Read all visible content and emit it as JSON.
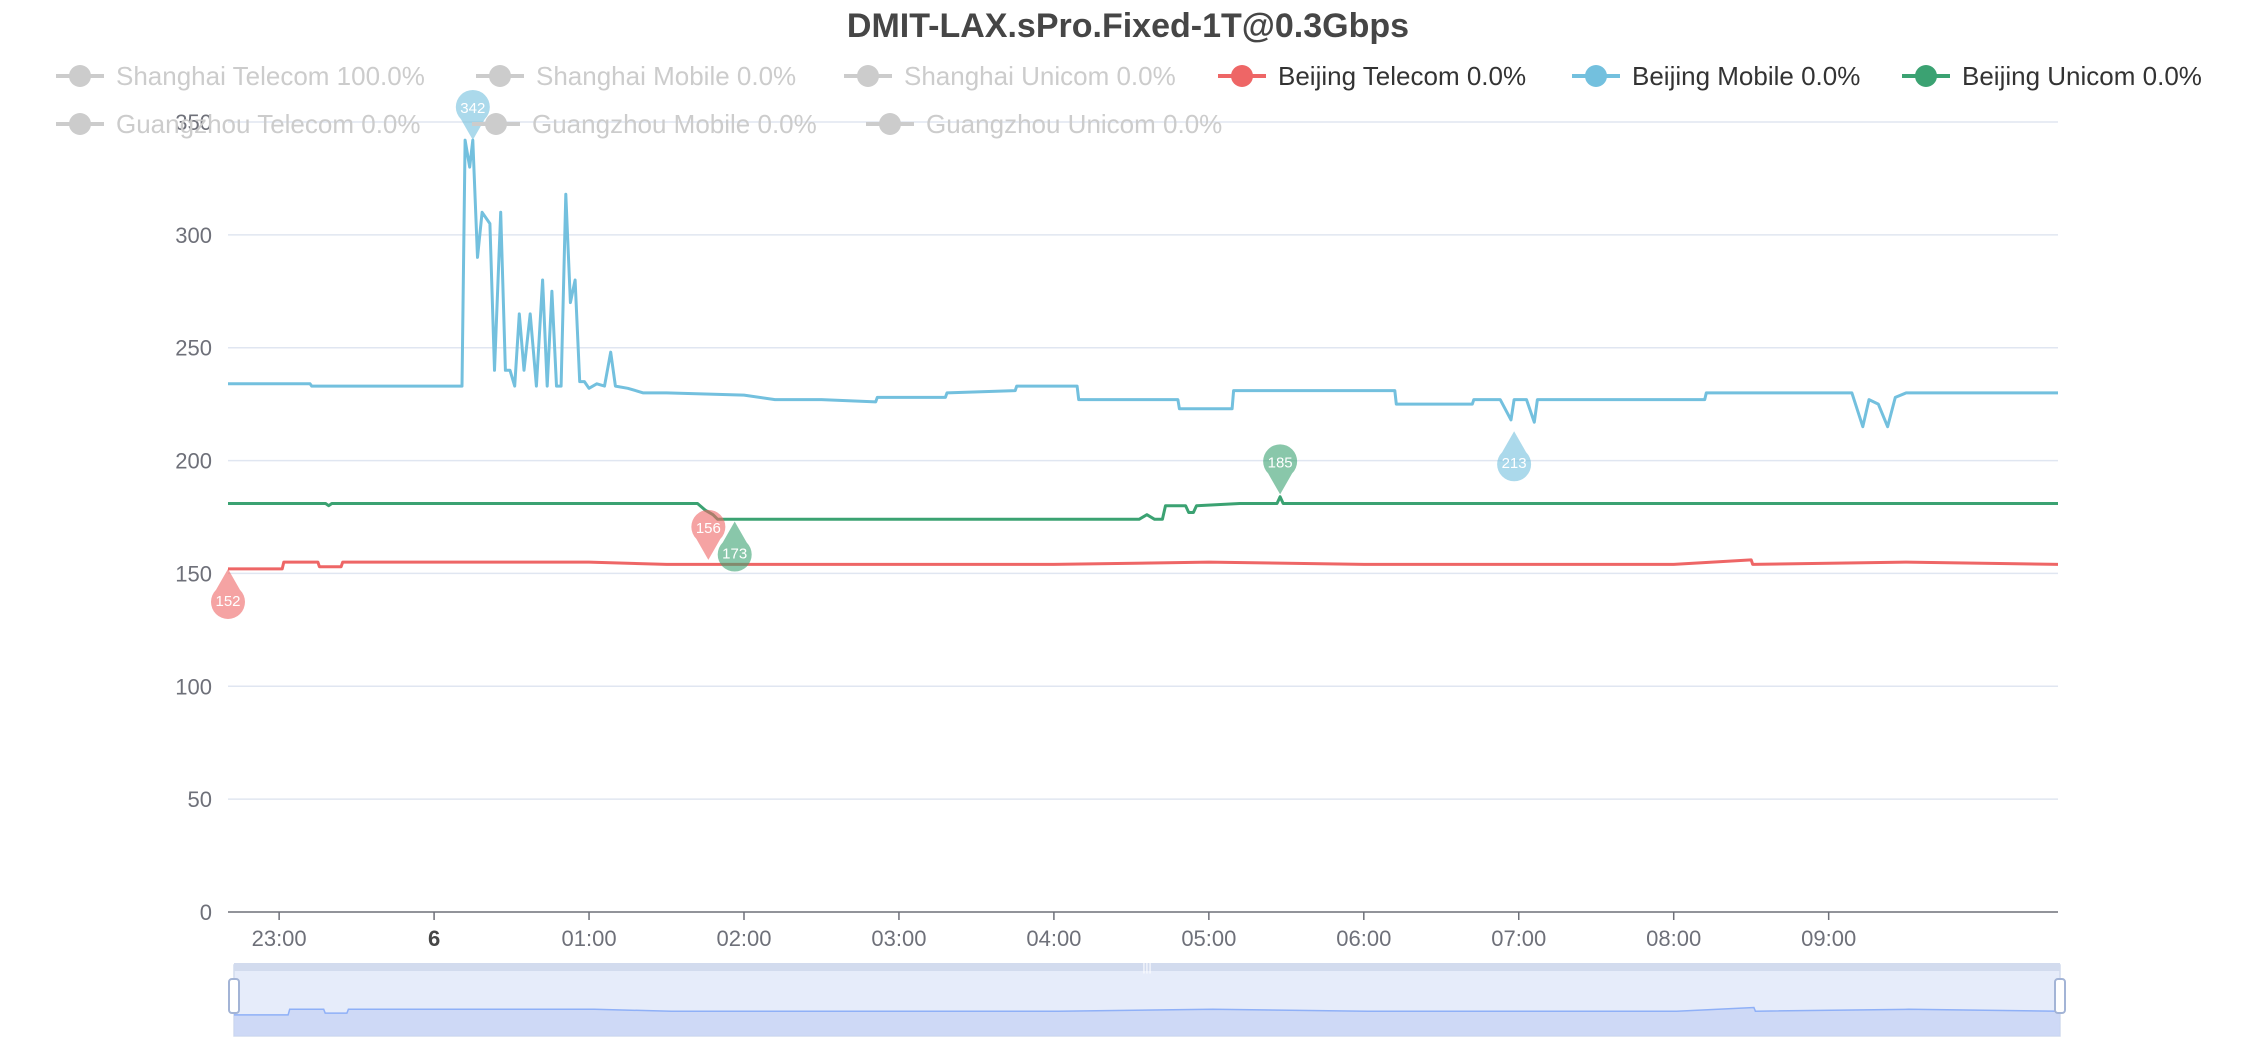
{
  "colors": {
    "beijing_telecom": "#ee6666",
    "beijing_mobile": "#73c0de",
    "beijing_unicom": "#3ba272",
    "inactive": "#cccccc",
    "grid": "#e0e6f1",
    "axis": "#6e7079",
    "slider_fill": "#e6ecfa",
    "slider_line": "#8fb0f7"
  },
  "chart_data": {
    "type": "line",
    "title": "DMIT-LAX.sPro.Fixed-1T@0.3Gbps",
    "ylim": [
      0,
      350
    ],
    "yticks": [
      "0",
      "50",
      "100",
      "150",
      "200",
      "250",
      "300",
      "350"
    ],
    "xrange_hours": [
      -1.33,
      10.48
    ],
    "xticks": [
      {
        "label": "23:00",
        "t": -1
      },
      {
        "label": "6",
        "t": 0,
        "bold": true
      },
      {
        "label": "01:00",
        "t": 1
      },
      {
        "label": "02:00",
        "t": 2
      },
      {
        "label": "03:00",
        "t": 3
      },
      {
        "label": "04:00",
        "t": 4
      },
      {
        "label": "05:00",
        "t": 5
      },
      {
        "label": "06:00",
        "t": 6
      },
      {
        "label": "07:00",
        "t": 7
      },
      {
        "label": "08:00",
        "t": 8
      },
      {
        "label": "09:00",
        "t": 9
      }
    ],
    "legend": [
      {
        "label": "Shanghai Telecom 100.0%",
        "active": false
      },
      {
        "label": "Shanghai Mobile 0.0%",
        "active": false
      },
      {
        "label": "Shanghai Unicom 0.0%",
        "active": false
      },
      {
        "label": "Beijing Telecom 0.0%",
        "active": true,
        "color_key": "beijing_telecom"
      },
      {
        "label": "Beijing Mobile 0.0%",
        "active": true,
        "color_key": "beijing_mobile"
      },
      {
        "label": "Beijing Unicom 0.0%",
        "active": true,
        "color_key": "beijing_unicom"
      },
      {
        "label": "Guangzhou Telecom 0.0%",
        "active": false
      },
      {
        "label": "Guangzhou Mobile 0.0%",
        "active": false
      },
      {
        "label": "Guangzhou Unicom 0.0%",
        "active": false
      }
    ],
    "series": [
      {
        "name": "Beijing Telecom",
        "color_key": "beijing_telecom",
        "points": [
          [
            -1.33,
            152
          ],
          [
            -0.98,
            152
          ],
          [
            -0.97,
            155
          ],
          [
            -0.75,
            155
          ],
          [
            -0.74,
            153
          ],
          [
            -0.6,
            153
          ],
          [
            -0.59,
            155
          ],
          [
            1.0,
            155
          ],
          [
            1.5,
            154
          ],
          [
            2.0,
            154
          ],
          [
            4.0,
            154
          ],
          [
            5.0,
            155
          ],
          [
            6.0,
            154
          ],
          [
            8.0,
            154
          ],
          [
            8.5,
            156
          ],
          [
            8.51,
            154
          ],
          [
            9.5,
            155
          ],
          [
            10.48,
            154
          ]
        ],
        "markers": [
          {
            "label": "152",
            "t": -1.33,
            "v": 152,
            "pos": "below"
          },
          {
            "label": "156",
            "t": 1.77,
            "v": 156,
            "pos": "above"
          }
        ]
      },
      {
        "name": "Beijing Mobile",
        "color_key": "beijing_mobile",
        "points": [
          [
            -1.33,
            234
          ],
          [
            -0.8,
            234
          ],
          [
            -0.79,
            233
          ],
          [
            0.18,
            233
          ],
          [
            0.2,
            342
          ],
          [
            0.23,
            330
          ],
          [
            0.25,
            342
          ],
          [
            0.28,
            290
          ],
          [
            0.31,
            310
          ],
          [
            0.36,
            305
          ],
          [
            0.39,
            240
          ],
          [
            0.43,
            310
          ],
          [
            0.46,
            240
          ],
          [
            0.49,
            240
          ],
          [
            0.52,
            233
          ],
          [
            0.55,
            265
          ],
          [
            0.58,
            240
          ],
          [
            0.62,
            265
          ],
          [
            0.66,
            233
          ],
          [
            0.7,
            280
          ],
          [
            0.73,
            233
          ],
          [
            0.76,
            275
          ],
          [
            0.79,
            233
          ],
          [
            0.82,
            233
          ],
          [
            0.85,
            318
          ],
          [
            0.88,
            270
          ],
          [
            0.91,
            280
          ],
          [
            0.94,
            235
          ],
          [
            0.97,
            235
          ],
          [
            1.0,
            232
          ],
          [
            1.05,
            234
          ],
          [
            1.1,
            233
          ],
          [
            1.14,
            248
          ],
          [
            1.17,
            233
          ],
          [
            1.25,
            232
          ],
          [
            1.35,
            230
          ],
          [
            1.5,
            230
          ],
          [
            2.0,
            229
          ],
          [
            2.2,
            227
          ],
          [
            2.5,
            227
          ],
          [
            2.85,
            226
          ],
          [
            2.86,
            228
          ],
          [
            3.3,
            228
          ],
          [
            3.31,
            230
          ],
          [
            3.75,
            231
          ],
          [
            3.76,
            233
          ],
          [
            4.15,
            233
          ],
          [
            4.16,
            227
          ],
          [
            4.8,
            227
          ],
          [
            4.81,
            223
          ],
          [
            5.15,
            223
          ],
          [
            5.16,
            231
          ],
          [
            6.2,
            231
          ],
          [
            6.21,
            225
          ],
          [
            6.7,
            225
          ],
          [
            6.71,
            227
          ],
          [
            6.88,
            227
          ],
          [
            6.95,
            218
          ],
          [
            6.97,
            227
          ],
          [
            7.05,
            227
          ],
          [
            7.1,
            217
          ],
          [
            7.12,
            227
          ],
          [
            8.2,
            227
          ],
          [
            8.21,
            230
          ],
          [
            9.15,
            230
          ],
          [
            9.22,
            215
          ],
          [
            9.26,
            227
          ],
          [
            9.32,
            225
          ],
          [
            9.38,
            215
          ],
          [
            9.43,
            228
          ],
          [
            9.5,
            230
          ],
          [
            10.48,
            230
          ]
        ],
        "markers": [
          {
            "label": "342",
            "t": 0.25,
            "v": 342,
            "pos": "above"
          },
          {
            "label": "213",
            "t": 6.97,
            "v": 213,
            "pos": "below"
          }
        ]
      },
      {
        "name": "Beijing Unicom",
        "color_key": "beijing_unicom",
        "points": [
          [
            -1.33,
            181
          ],
          [
            -0.7,
            181
          ],
          [
            -0.68,
            180
          ],
          [
            -0.66,
            181
          ],
          [
            1.7,
            181
          ],
          [
            1.75,
            178
          ],
          [
            1.8,
            176
          ],
          [
            1.83,
            174
          ],
          [
            4.55,
            174
          ],
          [
            4.6,
            176
          ],
          [
            4.65,
            174
          ],
          [
            4.7,
            174
          ],
          [
            4.72,
            180
          ],
          [
            4.85,
            180
          ],
          [
            4.87,
            177
          ],
          [
            4.9,
            177
          ],
          [
            4.92,
            180
          ],
          [
            5.2,
            181
          ],
          [
            5.44,
            181
          ],
          [
            5.46,
            184
          ],
          [
            5.48,
            181
          ],
          [
            9.5,
            181
          ],
          [
            10.48,
            181
          ]
        ],
        "markers": [
          {
            "label": "185",
            "t": 5.46,
            "v": 185,
            "pos": "above"
          },
          {
            "label": "173",
            "t": 1.94,
            "v": 173,
            "pos": "below"
          }
        ]
      }
    ],
    "slider": {
      "start": 0,
      "end": 1
    }
  }
}
